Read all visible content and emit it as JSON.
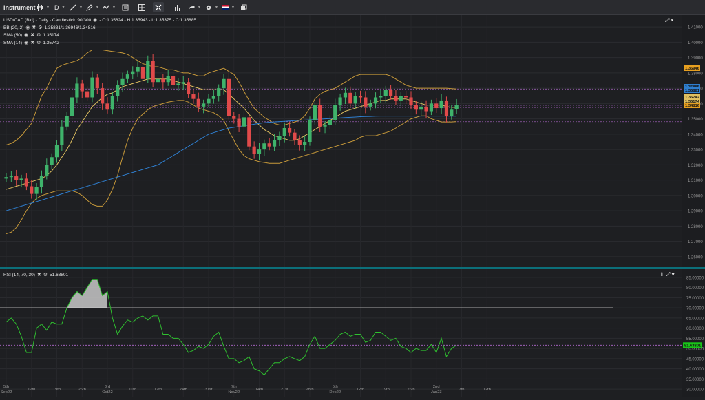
{
  "toolbar": {
    "instrument_label": "Instrument",
    "period_label": "D",
    "icons": [
      "candlestick-icon",
      "period-icon",
      "draw-line-icon",
      "indicators-icon",
      "layout-icon",
      "crosshair-icon",
      "chart-type-icon",
      "share-icon",
      "settings-icon",
      "language-flag-icon",
      "popout-icon"
    ]
  },
  "legend": {
    "title": "USD/CAD (Bid) - Daily - Candlestick",
    "count": "90/300",
    "ohlc": "- O:1.35624 - H:1.35943 - L:1.35375 - C:1.35885",
    "bb_label": "BB (20, 2)",
    "bb_value": "1.35881/1.36946/1.34816",
    "sma50_label": "SMA (50)",
    "sma50_value": "1.35174",
    "sma14_label": "SMA (14)",
    "sma14_value": "1.35742",
    "rsi_label": "RSI (14, 70, 30)",
    "rsi_value": "51.63801"
  },
  "colors": {
    "up": "#3fb36b",
    "down": "#e04a4a",
    "bb": "#c89a3a",
    "sma50": "#2f7fd0",
    "sma14": "#e0c060",
    "rsi": "#2fbf2f",
    "background": "#1e1f22"
  },
  "chart_data": [
    {
      "type": "candlestick",
      "title": "USD/CAD (Bid) - Daily - Candlestick",
      "ylim": [
        1.255,
        1.415
      ],
      "yticks": [
        "1.41000",
        "1.40000",
        "1.39000",
        "1.38000",
        "1.37000",
        "1.36000",
        "1.35000",
        "1.34000",
        "1.33000",
        "1.32000",
        "1.31000",
        "1.30000",
        "1.29000",
        "1.28000",
        "1.27000",
        "1.26000"
      ],
      "price_tags": [
        {
          "label": "1.36946",
          "value": 1.36946,
          "color": "#e8a020"
        },
        {
          "label": "1.35885",
          "value": 1.35885,
          "color": "#2f7fd0"
        },
        {
          "label": "1.35881",
          "value": 1.35881,
          "color": "#2f7fd0"
        },
        {
          "label": "1.35742",
          "value": 1.35742,
          "color": "#e0c060"
        },
        {
          "label": "1.35174",
          "value": 1.35174,
          "color": "#e0c060"
        },
        {
          "label": "1.34816",
          "value": 1.34816,
          "color": "#e8a020"
        }
      ],
      "x_labels": [
        {
          "i": 0,
          "label": "5th",
          "sub": "Sep22"
        },
        {
          "i": 5,
          "label": "12th"
        },
        {
          "i": 10,
          "label": "19th"
        },
        {
          "i": 15,
          "label": "26th"
        },
        {
          "i": 20,
          "label": "3rd",
          "sub": "Oct22"
        },
        {
          "i": 25,
          "label": "10th"
        },
        {
          "i": 30,
          "label": "17th"
        },
        {
          "i": 35,
          "label": "24th"
        },
        {
          "i": 40,
          "label": "31st"
        },
        {
          "i": 45,
          "label": "7th",
          "sub": "Nov22"
        },
        {
          "i": 50,
          "label": "14th"
        },
        {
          "i": 55,
          "label": "21st"
        },
        {
          "i": 60,
          "label": "28th"
        },
        {
          "i": 65,
          "label": "5th",
          "sub": "Dec22"
        },
        {
          "i": 70,
          "label": "12th"
        },
        {
          "i": 75,
          "label": "19th"
        },
        {
          "i": 80,
          "label": "26th"
        },
        {
          "i": 85,
          "label": "2nd",
          "sub": "Jan23"
        },
        {
          "i": 90,
          "label": "7th"
        },
        {
          "i": 95,
          "label": "12th"
        }
      ],
      "close": [
        1.312,
        1.3125,
        1.31,
        1.311,
        1.306,
        1.301,
        1.3055,
        1.313,
        1.32,
        1.325,
        1.333,
        1.345,
        1.352,
        1.364,
        1.373,
        1.368,
        1.364,
        1.377,
        1.37,
        1.36,
        1.356,
        1.365,
        1.372,
        1.376,
        1.379,
        1.381,
        1.384,
        1.376,
        1.388,
        1.374,
        1.376,
        1.374,
        1.378,
        1.372,
        1.373,
        1.374,
        1.366,
        1.363,
        1.358,
        1.36,
        1.363,
        1.365,
        1.37,
        1.376,
        1.352,
        1.35,
        1.345,
        1.351,
        1.332,
        1.327,
        1.33,
        1.334,
        1.332,
        1.336,
        1.339,
        1.344,
        1.341,
        1.336,
        1.333,
        1.335,
        1.349,
        1.359,
        1.345,
        1.346,
        1.349,
        1.359,
        1.364,
        1.367,
        1.36,
        1.365,
        1.364,
        1.358,
        1.36,
        1.364,
        1.365,
        1.369,
        1.365,
        1.362,
        1.365,
        1.364,
        1.359,
        1.356,
        1.358,
        1.355,
        1.36,
        1.357,
        1.362,
        1.352,
        1.356,
        1.3588
      ],
      "open": [
        1.311,
        1.312,
        1.3125,
        1.31,
        1.311,
        1.306,
        1.301,
        1.3055,
        1.313,
        1.32,
        1.325,
        1.333,
        1.345,
        1.352,
        1.364,
        1.373,
        1.368,
        1.364,
        1.377,
        1.37,
        1.36,
        1.356,
        1.365,
        1.372,
        1.376,
        1.379,
        1.381,
        1.384,
        1.376,
        1.388,
        1.374,
        1.376,
        1.374,
        1.378,
        1.372,
        1.373,
        1.374,
        1.366,
        1.363,
        1.358,
        1.36,
        1.363,
        1.365,
        1.37,
        1.376,
        1.352,
        1.35,
        1.345,
        1.351,
        1.332,
        1.327,
        1.33,
        1.334,
        1.332,
        1.336,
        1.339,
        1.344,
        1.341,
        1.336,
        1.333,
        1.335,
        1.349,
        1.359,
        1.345,
        1.346,
        1.349,
        1.359,
        1.364,
        1.367,
        1.36,
        1.365,
        1.364,
        1.358,
        1.36,
        1.364,
        1.365,
        1.369,
        1.365,
        1.362,
        1.365,
        1.364,
        1.359,
        1.356,
        1.358,
        1.355,
        1.36,
        1.357,
        1.362,
        1.352,
        1.35624
      ],
      "bb_upper": [
        1.333,
        1.334,
        1.336,
        1.339,
        1.343,
        1.347,
        1.356,
        1.365,
        1.37,
        1.377,
        1.383,
        1.385,
        1.386,
        1.387,
        1.388,
        1.39,
        1.393,
        1.395,
        1.395,
        1.395,
        1.3945,
        1.394,
        1.3935,
        1.393,
        1.392,
        1.39,
        1.388,
        1.386,
        1.385,
        1.384,
        1.384,
        1.383,
        1.382,
        1.382,
        1.381,
        1.38,
        1.38,
        1.379,
        1.378,
        1.378,
        1.38,
        1.381,
        1.382,
        1.383,
        1.381,
        1.379,
        1.374,
        1.368,
        1.362,
        1.357,
        1.354,
        1.351,
        1.349,
        1.347,
        1.346,
        1.346,
        1.347,
        1.348,
        1.349,
        1.352,
        1.357,
        1.363,
        1.366,
        1.368,
        1.369,
        1.37,
        1.372,
        1.374,
        1.376,
        1.378,
        1.379,
        1.379,
        1.379,
        1.379,
        1.379,
        1.379,
        1.378,
        1.376,
        1.374,
        1.372,
        1.371,
        1.37,
        1.37,
        1.37,
        1.37,
        1.37,
        1.37,
        1.37,
        1.3697,
        1.3695
      ],
      "bb_lower": [
        1.275,
        1.276,
        1.279,
        1.284,
        1.29,
        1.295,
        1.298,
        1.3,
        1.301,
        1.302,
        1.303,
        1.303,
        1.303,
        1.303,
        1.302,
        1.3,
        1.297,
        1.294,
        1.293,
        1.293,
        1.297,
        1.304,
        1.313,
        1.325,
        1.336,
        1.344,
        1.35,
        1.353,
        1.356,
        1.358,
        1.359,
        1.36,
        1.361,
        1.3615,
        1.362,
        1.362,
        1.361,
        1.359,
        1.357,
        1.356,
        1.355,
        1.354,
        1.352,
        1.349,
        1.342,
        1.336,
        1.33,
        1.326,
        1.324,
        1.323,
        1.322,
        1.3215,
        1.321,
        1.321,
        1.321,
        1.322,
        1.323,
        1.324,
        1.325,
        1.326,
        1.327,
        1.328,
        1.329,
        1.33,
        1.331,
        1.332,
        1.333,
        1.334,
        1.335,
        1.336,
        1.338,
        1.339,
        1.339,
        1.339,
        1.34,
        1.341,
        1.342,
        1.344,
        1.346,
        1.348,
        1.35,
        1.351,
        1.352,
        1.352,
        1.35,
        1.349,
        1.348,
        1.348,
        1.348,
        1.3482
      ],
      "sma14": [
        1.304,
        1.305,
        1.306,
        1.307,
        1.308,
        1.309,
        1.31,
        1.311,
        1.313,
        1.316,
        1.32,
        1.325,
        1.33,
        1.336,
        1.343,
        1.348,
        1.353,
        1.358,
        1.361,
        1.364,
        1.366,
        1.367,
        1.369,
        1.371,
        1.372,
        1.373,
        1.374,
        1.375,
        1.376,
        1.376,
        1.376,
        1.376,
        1.376,
        1.375,
        1.374,
        1.373,
        1.372,
        1.371,
        1.37,
        1.369,
        1.369,
        1.369,
        1.369,
        1.369,
        1.366,
        1.363,
        1.36,
        1.357,
        1.353,
        1.349,
        1.346,
        1.343,
        1.341,
        1.339,
        1.338,
        1.337,
        1.336,
        1.336,
        1.337,
        1.339,
        1.341,
        1.343,
        1.345,
        1.347,
        1.349,
        1.351,
        1.353,
        1.355,
        1.356,
        1.357,
        1.358,
        1.359,
        1.36,
        1.361,
        1.362,
        1.362,
        1.363,
        1.363,
        1.363,
        1.363,
        1.362,
        1.361,
        1.36,
        1.359,
        1.359,
        1.359,
        1.359,
        1.358,
        1.3576,
        1.35742
      ],
      "sma50": [
        1.29,
        1.291,
        1.292,
        1.293,
        1.294,
        1.295,
        1.296,
        1.297,
        1.298,
        1.299,
        1.3,
        1.301,
        1.302,
        1.303,
        1.304,
        1.305,
        1.306,
        1.307,
        1.308,
        1.309,
        1.31,
        1.311,
        1.312,
        1.313,
        1.314,
        1.315,
        1.316,
        1.317,
        1.318,
        1.319,
        1.32,
        1.322,
        1.324,
        1.326,
        1.328,
        1.33,
        1.332,
        1.334,
        1.336,
        1.338,
        1.34,
        1.341,
        1.342,
        1.343,
        1.344,
        1.3445,
        1.345,
        1.3455,
        1.346,
        1.3465,
        1.347,
        1.3475,
        1.3478,
        1.348,
        1.3482,
        1.3484,
        1.3486,
        1.3488,
        1.349,
        1.3492,
        1.3494,
        1.3496,
        1.3498,
        1.35,
        1.3502,
        1.3504,
        1.3506,
        1.3508,
        1.351,
        1.3512,
        1.3514,
        1.3515,
        1.3516,
        1.3517,
        1.3518,
        1.3518,
        1.3518,
        1.3518,
        1.3518,
        1.3518,
        1.3518,
        1.3518,
        1.3518,
        1.3518,
        1.3518,
        1.3518,
        1.3518,
        1.3518,
        1.3517,
        1.35174
      ]
    },
    {
      "type": "line",
      "title": "RSI (14, 70, 30)",
      "ylim": [
        28,
        87
      ],
      "yticks": [
        "85.00000",
        "80.00000",
        "75.00000",
        "70.00000",
        "65.00000",
        "60.00000",
        "55.00000",
        "50.00000",
        "45.00000",
        "40.00000",
        "35.00000",
        "30.00000"
      ],
      "overbought": 70,
      "current": {
        "label": "51.63801",
        "value": 51.63801
      },
      "values": [
        63,
        65,
        62,
        56,
        48,
        48,
        60,
        62,
        59,
        63,
        62,
        62,
        70,
        75,
        78,
        76,
        80,
        84,
        84,
        76,
        78,
        65,
        57,
        61,
        64,
        63,
        65,
        66,
        64,
        66,
        66,
        57,
        57,
        55,
        55,
        52,
        48,
        49,
        51,
        50,
        52,
        56,
        58,
        51,
        45,
        45,
        43,
        44,
        46,
        40,
        39,
        37,
        40,
        43,
        43,
        45,
        46,
        45,
        44,
        46,
        52,
        56,
        50,
        50,
        52,
        54,
        57,
        58,
        56,
        57,
        57,
        53,
        54,
        58,
        58,
        56,
        54,
        55,
        51,
        50,
        48,
        50,
        49,
        49,
        52,
        48,
        55,
        46,
        50,
        51.6
      ]
    }
  ]
}
